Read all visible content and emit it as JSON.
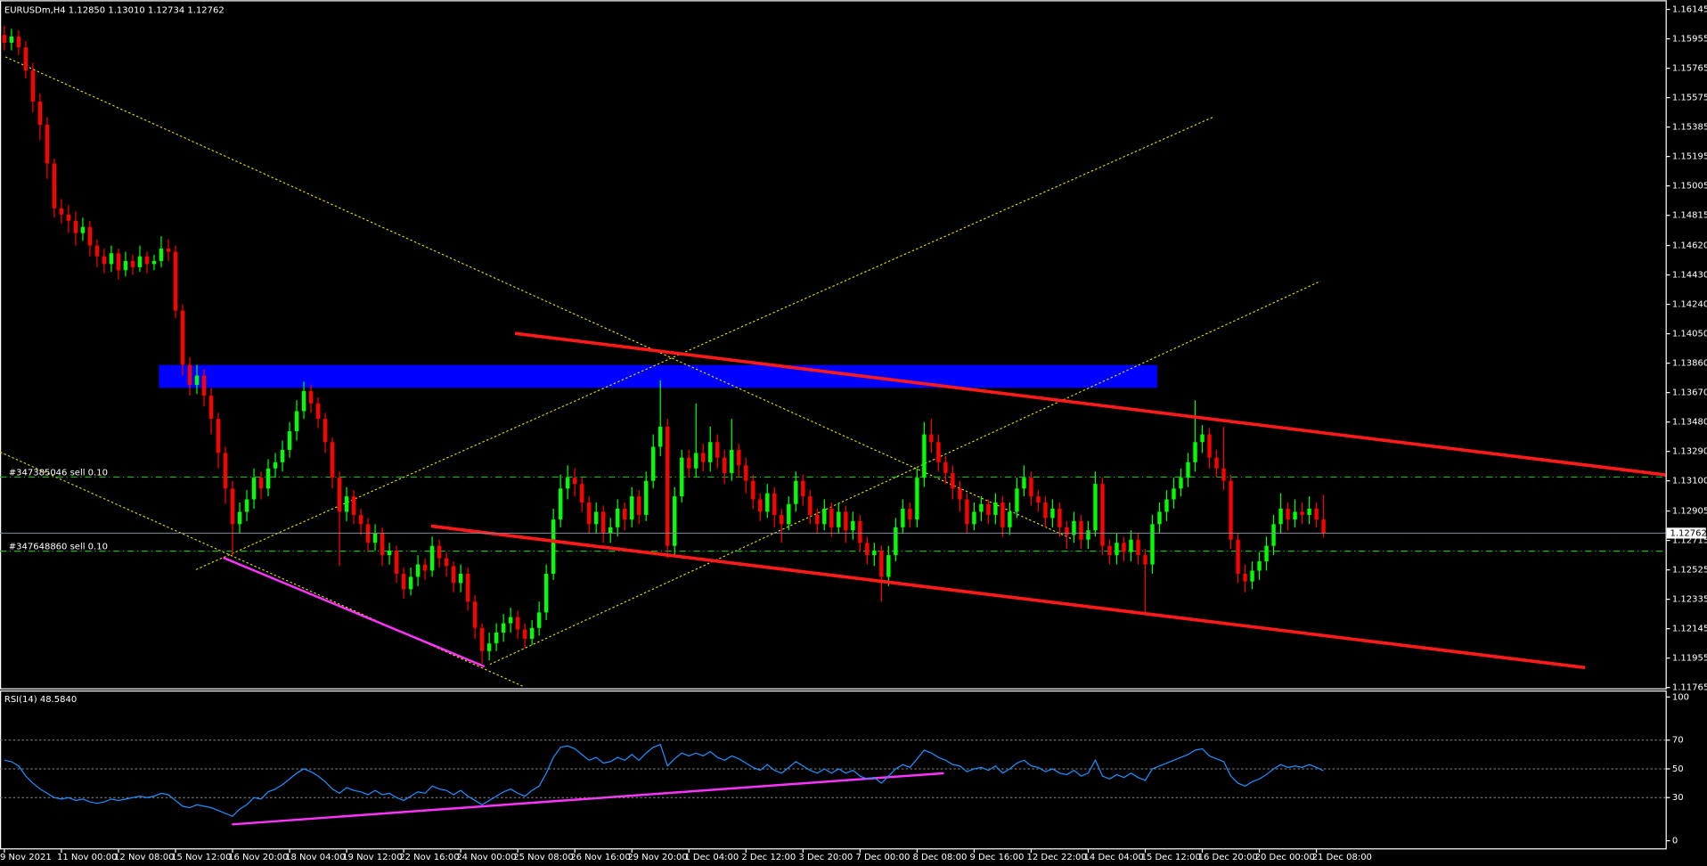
{
  "chart_data": [
    {
      "type": "candlestick",
      "title": "EURUSDm,H4  1.12850 1.13010 1.12734 1.12762",
      "up_color": "#00ff00",
      "down_color": "#ff0000",
      "grid": false,
      "annotations": [
        "#347385046 sell 0.10",
        "#347648860 sell 0.10"
      ],
      "current_price": 1.12762,
      "ylim": [
        1.1176,
        1.1619
      ],
      "yticks": [
        1.16145,
        1.15955,
        1.15765,
        1.15575,
        1.15385,
        1.15195,
        1.15005,
        1.14815,
        {
          "value": 1.1462,
          "label": "1.14620"
        },
        {
          "value": 1.1443,
          "label": "1.14430"
        },
        {
          "value": 1.1424,
          "label": "1.14240"
        },
        {
          "value": 1.1405,
          "label": "1.14050"
        },
        {
          "value": 1.1386,
          "label": "1.13860"
        },
        {
          "value": 1.1367,
          "label": "1.13670"
        },
        {
          "value": 1.1348,
          "label": "1.13480"
        },
        {
          "value": 1.1329,
          "label": "1.13290"
        },
        {
          "value": 1.131,
          "label": "1.13100"
        },
        1.12905,
        1.12715,
        1.12525,
        1.12335,
        1.12145,
        1.11955,
        1.11765
      ],
      "categories": [
        "9 Nov 2021",
        null,
        null,
        null,
        null,
        null,
        null,
        null,
        "11 Nov 00:00",
        null,
        null,
        null,
        null,
        null,
        null,
        null,
        "12 Nov 08:00",
        null,
        null,
        null,
        null,
        null,
        null,
        null,
        "15 Nov 12:00",
        null,
        null,
        null,
        null,
        null,
        null,
        null,
        "16 Nov 20:00",
        null,
        null,
        null,
        null,
        null,
        null,
        null,
        "18 Nov 04:00",
        null,
        null,
        null,
        null,
        null,
        null,
        null,
        "19 Nov 12:00",
        null,
        null,
        null,
        null,
        null,
        null,
        null,
        "22 Nov 16:00",
        null,
        null,
        null,
        null,
        null,
        null,
        null,
        "24 Nov 00:00",
        null,
        null,
        null,
        null,
        null,
        null,
        null,
        "25 Nov 08:00",
        null,
        null,
        null,
        null,
        null,
        null,
        null,
        "26 Nov 16:00",
        null,
        null,
        null,
        null,
        null,
        null,
        null,
        "29 Nov 20:00",
        null,
        null,
        null,
        null,
        null,
        null,
        null,
        "1 Dec 04:00",
        null,
        null,
        null,
        null,
        null,
        null,
        null,
        "2 Dec 12:00",
        null,
        null,
        null,
        null,
        null,
        null,
        null,
        "3 Dec 20:00",
        null,
        null,
        null,
        null,
        null,
        null,
        null,
        "7 Dec 00:00",
        null,
        null,
        null,
        null,
        null,
        null,
        null,
        "8 Dec 08:00",
        null,
        null,
        null,
        null,
        null,
        null,
        null,
        "9 Dec 16:00",
        null,
        null,
        null,
        null,
        null,
        null,
        null,
        "12 Dec 22:00",
        null,
        null,
        null,
        null,
        null,
        null,
        null,
        "14 Dec 04:00",
        null,
        null,
        null,
        null,
        null,
        null,
        null,
        "15 Dec 12:00",
        null,
        null,
        null,
        null,
        null,
        null,
        null,
        "16 Dec 20:00",
        null,
        null,
        null,
        null,
        null,
        null,
        null,
        "20 Dec 00:00",
        null,
        null,
        null,
        null,
        null,
        null,
        null,
        "21 Dec 08:00",
        null
      ],
      "open": [
        1.1598,
        1.1593,
        1.1597,
        1.159,
        1.1575,
        1.1555,
        1.154,
        1.1515,
        1.1486,
        1.1482,
        1.1478,
        1.147,
        1.1474,
        1.1462,
        1.1455,
        1.145,
        1.1457,
        1.1446,
        1.1452,
        1.1448,
        1.1455,
        1.145,
        1.1452,
        1.146,
        1.1458,
        1.142,
        1.1385,
        1.1372,
        1.1378,
        1.1365,
        1.135,
        1.1328,
        1.1305,
        1.1282,
        1.129,
        1.1298,
        1.1312,
        1.1305,
        1.1318,
        1.1322,
        1.133,
        1.1342,
        1.1355,
        1.1368,
        1.136,
        1.135,
        1.1335,
        1.1312,
        1.129,
        1.13,
        1.1288,
        1.1282,
        1.127,
        1.1276,
        1.1262,
        1.1265,
        1.125,
        1.124,
        1.1248,
        1.1256,
        1.1252,
        1.1268,
        1.126,
        1.1255,
        1.1244,
        1.125,
        1.1232,
        1.1215,
        1.12,
        1.1205,
        1.1212,
        1.1218,
        1.1222,
        1.1214,
        1.1208,
        1.1215,
        1.1225,
        1.125,
        1.1285,
        1.1305,
        1.1312,
        1.1308,
        1.1296,
        1.1282,
        1.129,
        1.1276,
        1.128,
        1.1292,
        1.1285,
        1.13,
        1.1288,
        1.131,
        1.1332,
        1.1345,
        1.1268,
        1.13,
        1.1325,
        1.1318,
        1.1328,
        1.1322,
        1.1335,
        1.1325,
        1.1315,
        1.133,
        1.132,
        1.131,
        1.1298,
        1.129,
        1.1302,
        1.1288,
        1.1282,
        1.1295,
        1.131,
        1.13,
        1.1288,
        1.1282,
        1.1292,
        1.128,
        1.129,
        1.1278,
        1.1284,
        1.127,
        1.1262,
        1.1265,
        1.1248,
        1.1262,
        1.128,
        1.1292,
        1.1285,
        1.1312,
        1.134,
        1.1335,
        1.1322,
        1.1315,
        1.1305,
        1.1298,
        1.1282,
        1.129,
        1.1295,
        1.1288,
        1.1296,
        1.128,
        1.129,
        1.1305,
        1.1312,
        1.13,
        1.1296,
        1.1286,
        1.1292,
        1.128,
        1.1275,
        1.1284,
        1.1272,
        1.1278,
        1.1308,
        1.1268,
        1.1262,
        1.127,
        1.1264,
        1.1272,
        1.1262,
        1.1256,
        1.1282,
        1.129,
        1.1298,
        1.1305,
        1.1312,
        1.1322,
        1.1335,
        1.134,
        1.1325,
        1.1318,
        1.131,
        1.1272,
        1.125,
        1.1245,
        1.1252,
        1.1258,
        1.1268,
        1.1282,
        1.1292,
        1.1285,
        1.129,
        1.1288,
        1.1292,
        1.1285
      ],
      "high": [
        1.1604,
        1.1602,
        1.1601,
        1.1594,
        1.158,
        1.156,
        1.1545,
        1.1518,
        1.1492,
        1.1488,
        1.1484,
        1.148,
        1.1478,
        1.1466,
        1.146,
        1.1462,
        1.146,
        1.1458,
        1.1456,
        1.1462,
        1.1458,
        1.1456,
        1.1468,
        1.1466,
        1.1462,
        1.1424,
        1.139,
        1.1385,
        1.1382,
        1.137,
        1.1354,
        1.1332,
        1.131,
        1.1296,
        1.1304,
        1.1318,
        1.1316,
        1.1324,
        1.1328,
        1.1336,
        1.1348,
        1.1362,
        1.1374,
        1.1372,
        1.1364,
        1.1354,
        1.1338,
        1.1316,
        1.1306,
        1.1304,
        1.1292,
        1.1286,
        1.1282,
        1.128,
        1.127,
        1.1268,
        1.1254,
        1.1254,
        1.1262,
        1.126,
        1.1274,
        1.1272,
        1.1264,
        1.1258,
        1.1256,
        1.1254,
        1.1236,
        1.1218,
        1.1212,
        1.1218,
        1.1224,
        1.1228,
        1.1226,
        1.1218,
        1.122,
        1.1232,
        1.1256,
        1.1292,
        1.1314,
        1.132,
        1.1318,
        1.1312,
        1.13,
        1.1296,
        1.1294,
        1.1286,
        1.1298,
        1.1296,
        1.1306,
        1.1304,
        1.1316,
        1.134,
        1.1375,
        1.135,
        1.1306,
        1.133,
        1.133,
        1.136,
        1.1334,
        1.1345,
        1.134,
        1.133,
        1.135,
        1.1334,
        1.1325,
        1.1314,
        1.1302,
        1.1308,
        1.1306,
        1.1292,
        1.13,
        1.1316,
        1.1314,
        1.1304,
        1.1292,
        1.1298,
        1.1296,
        1.1296,
        1.1294,
        1.129,
        1.1288,
        1.1274,
        1.127,
        1.1268,
        1.1268,
        1.1286,
        1.1298,
        1.1296,
        1.1318,
        1.1348,
        1.135,
        1.134,
        1.1326,
        1.132,
        1.131,
        1.1302,
        1.1296,
        1.13,
        1.1298,
        1.1302,
        1.13,
        1.1296,
        1.1312,
        1.132,
        1.1316,
        1.1304,
        1.13,
        1.1298,
        1.1296,
        1.1284,
        1.129,
        1.1288,
        1.1284,
        1.1316,
        1.1312,
        1.1272,
        1.1276,
        1.1274,
        1.1278,
        1.1276,
        1.1266,
        1.1288,
        1.1296,
        1.1304,
        1.1312,
        1.1318,
        1.1328,
        1.1362,
        1.1346,
        1.1344,
        1.133,
        1.1345,
        1.1314,
        1.1276,
        1.1256,
        1.1258,
        1.1264,
        1.1274,
        1.1288,
        1.1302,
        1.1296,
        1.1298,
        1.1296,
        1.13,
        1.1296,
        1.1301
      ],
      "low": [
        1.1588,
        1.1588,
        1.1585,
        1.157,
        1.1548,
        1.153,
        1.1505,
        1.148,
        1.1476,
        1.147,
        1.1462,
        1.1465,
        1.1455,
        1.1448,
        1.1444,
        1.1445,
        1.144,
        1.1442,
        1.1443,
        1.1445,
        1.1444,
        1.1446,
        1.1448,
        1.1452,
        1.1415,
        1.1378,
        1.1365,
        1.1366,
        1.1358,
        1.134,
        1.1318,
        1.1295,
        1.1262,
        1.1276,
        1.1284,
        1.1292,
        1.1298,
        1.13,
        1.1312,
        1.1316,
        1.1325,
        1.1336,
        1.135,
        1.1354,
        1.1344,
        1.1328,
        1.1305,
        1.1255,
        1.1284,
        1.1282,
        1.1275,
        1.1264,
        1.1265,
        1.1255,
        1.1256,
        1.1244,
        1.1234,
        1.1236,
        1.1242,
        1.1246,
        1.1248,
        1.1254,
        1.1248,
        1.1238,
        1.1238,
        1.1226,
        1.1208,
        1.1192,
        1.1194,
        1.12,
        1.1206,
        1.1212,
        1.1208,
        1.1202,
        1.1204,
        1.121,
        1.122,
        1.1246,
        1.128,
        1.1298,
        1.13,
        1.129,
        1.1276,
        1.1276,
        1.127,
        1.127,
        1.1274,
        1.1278,
        1.128,
        1.1282,
        1.1284,
        1.1305,
        1.1326,
        1.126,
        1.1262,
        1.1296,
        1.1312,
        1.1312,
        1.1316,
        1.1316,
        1.1318,
        1.1308,
        1.131,
        1.1312,
        1.1302,
        1.1292,
        1.1284,
        1.1286,
        1.128,
        1.127,
        1.1278,
        1.129,
        1.1294,
        1.1282,
        1.1276,
        1.1278,
        1.1274,
        1.1276,
        1.127,
        1.1272,
        1.1264,
        1.1256,
        1.1255,
        1.1232,
        1.1242,
        1.1258,
        1.1276,
        1.128,
        1.128,
        1.1306,
        1.1328,
        1.1316,
        1.1308,
        1.1298,
        1.129,
        1.1276,
        1.1278,
        1.1284,
        1.1282,
        1.1282,
        1.1274,
        1.1275,
        1.1286,
        1.13,
        1.1294,
        1.129,
        1.128,
        1.128,
        1.1274,
        1.1266,
        1.127,
        1.1266,
        1.1266,
        1.1274,
        1.1262,
        1.1256,
        1.1256,
        1.1258,
        1.1258,
        1.1256,
        1.1225,
        1.125,
        1.1276,
        1.1284,
        1.1292,
        1.13,
        1.1306,
        1.1316,
        1.1328,
        1.1318,
        1.1312,
        1.1304,
        1.1266,
        1.1244,
        1.1238,
        1.124,
        1.1246,
        1.1252,
        1.1262,
        1.1276,
        1.1278,
        1.128,
        1.1282,
        1.1282,
        1.128,
        1.12734
      ],
      "close": [
        1.1593,
        1.1597,
        1.159,
        1.1575,
        1.1555,
        1.154,
        1.1515,
        1.1486,
        1.1482,
        1.1478,
        1.147,
        1.1474,
        1.1462,
        1.1455,
        1.145,
        1.1457,
        1.1446,
        1.1452,
        1.1448,
        1.1455,
        1.145,
        1.1452,
        1.146,
        1.1458,
        1.142,
        1.1385,
        1.1372,
        1.1378,
        1.1365,
        1.135,
        1.1328,
        1.1305,
        1.1282,
        1.129,
        1.1298,
        1.1312,
        1.1305,
        1.1318,
        1.1322,
        1.133,
        1.1342,
        1.1355,
        1.1368,
        1.136,
        1.135,
        1.1335,
        1.1312,
        1.129,
        1.13,
        1.1288,
        1.1282,
        1.127,
        1.1276,
        1.1262,
        1.1265,
        1.125,
        1.124,
        1.1248,
        1.1256,
        1.1252,
        1.1268,
        1.126,
        1.1255,
        1.1244,
        1.125,
        1.1232,
        1.1215,
        1.12,
        1.1205,
        1.1212,
        1.1218,
        1.1222,
        1.1214,
        1.1208,
        1.1215,
        1.1225,
        1.125,
        1.1285,
        1.1305,
        1.1312,
        1.1308,
        1.1296,
        1.1282,
        1.129,
        1.1276,
        1.128,
        1.1292,
        1.1285,
        1.13,
        1.1288,
        1.131,
        1.1332,
        1.1345,
        1.1268,
        1.13,
        1.1325,
        1.1318,
        1.1328,
        1.1322,
        1.1335,
        1.1325,
        1.1315,
        1.133,
        1.132,
        1.131,
        1.1298,
        1.129,
        1.1302,
        1.1288,
        1.1282,
        1.1295,
        1.131,
        1.13,
        1.1288,
        1.1282,
        1.1292,
        1.128,
        1.129,
        1.1278,
        1.1284,
        1.127,
        1.1262,
        1.1265,
        1.1248,
        1.1262,
        1.128,
        1.1292,
        1.1285,
        1.1312,
        1.134,
        1.1335,
        1.1322,
        1.1315,
        1.1305,
        1.1298,
        1.1282,
        1.129,
        1.1295,
        1.1288,
        1.1296,
        1.128,
        1.129,
        1.1305,
        1.1312,
        1.13,
        1.1296,
        1.1286,
        1.1292,
        1.128,
        1.1275,
        1.1284,
        1.1272,
        1.1278,
        1.1308,
        1.1268,
        1.1262,
        1.127,
        1.1264,
        1.1272,
        1.1262,
        1.1256,
        1.1282,
        1.129,
        1.1298,
        1.1305,
        1.1312,
        1.1322,
        1.1335,
        1.134,
        1.1325,
        1.1318,
        1.131,
        1.1272,
        1.125,
        1.1245,
        1.1252,
        1.1258,
        1.1268,
        1.1282,
        1.1292,
        1.1285,
        1.129,
        1.1288,
        1.1292,
        1.1285,
        1.12762
      ]
    },
    {
      "type": "line",
      "title": "RSI(14) 48.5840",
      "color": "#1e90ff",
      "ylim": [
        0,
        100
      ],
      "yticks": [
        0,
        30,
        50,
        70,
        100
      ],
      "levels": [
        30,
        50,
        70
      ],
      "values": [
        56,
        55,
        52,
        45,
        40,
        36,
        33,
        30,
        29,
        30,
        28,
        29,
        27,
        26,
        27,
        29,
        28,
        29,
        30,
        31,
        30,
        31,
        33,
        32,
        28,
        24,
        23,
        25,
        24,
        23,
        21,
        19,
        17,
        22,
        25,
        30,
        29,
        34,
        36,
        39,
        43,
        47,
        50,
        48,
        45,
        41,
        36,
        33,
        37,
        35,
        34,
        32,
        35,
        32,
        33,
        30,
        28,
        31,
        34,
        33,
        38,
        36,
        35,
        32,
        35,
        31,
        28,
        25,
        28,
        31,
        34,
        36,
        33,
        31,
        35,
        38,
        47,
        58,
        65,
        66,
        64,
        60,
        56,
        58,
        54,
        55,
        58,
        56,
        60,
        56,
        61,
        65,
        67,
        52,
        57,
        61,
        59,
        61,
        59,
        62,
        58,
        56,
        59,
        57,
        54,
        51,
        49,
        53,
        49,
        47,
        51,
        55,
        52,
        49,
        47,
        50,
        47,
        50,
        47,
        49,
        45,
        43,
        44,
        40,
        45,
        50,
        53,
        51,
        57,
        63,
        61,
        58,
        56,
        53,
        52,
        48,
        50,
        51,
        49,
        52,
        47,
        50,
        54,
        56,
        52,
        51,
        48,
        50,
        47,
        46,
        49,
        45,
        47,
        56,
        45,
        43,
        46,
        44,
        47,
        44,
        42,
        50,
        52,
        54,
        56,
        58,
        60,
        63,
        64,
        59,
        57,
        55,
        45,
        40,
        38,
        41,
        43,
        46,
        50,
        53,
        51,
        52,
        51,
        53,
        51,
        48.584
      ]
    }
  ]
}
